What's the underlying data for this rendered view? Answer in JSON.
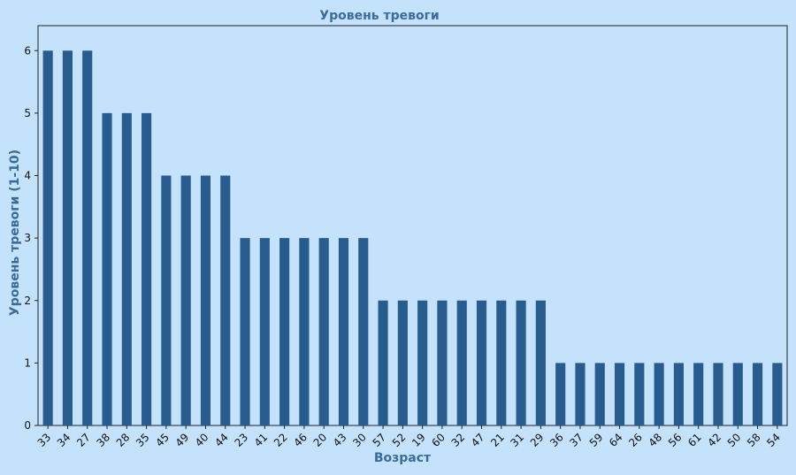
{
  "chart_data": {
    "type": "bar",
    "title": "Уровень тревоги",
    "xlabel": "Возраст",
    "ylabel": "Уровень тревоги (1-10)",
    "categories": [
      "33",
      "34",
      "27",
      "38",
      "28",
      "35",
      "45",
      "49",
      "40",
      "44",
      "23",
      "41",
      "22",
      "46",
      "20",
      "43",
      "30",
      "57",
      "52",
      "19",
      "60",
      "32",
      "47",
      "21",
      "31",
      "29",
      "36",
      "37",
      "59",
      "64",
      "26",
      "48",
      "56",
      "61",
      "42",
      "50",
      "58",
      "54"
    ],
    "values": [
      6,
      6,
      6,
      5,
      5,
      5,
      4,
      4,
      4,
      4,
      3,
      3,
      3,
      3,
      3,
      3,
      3,
      2,
      2,
      2,
      2,
      2,
      2,
      2,
      2,
      2,
      1,
      1,
      1,
      1,
      1,
      1,
      1,
      1,
      1,
      1,
      1,
      1
    ],
    "ylim": [
      0,
      6.4
    ],
    "yticks": [
      0,
      1,
      2,
      3,
      4,
      5,
      6
    ],
    "grid": false,
    "bar_color": "#285c8e",
    "background_color": "#c5e2fc",
    "title_color": "#3a6c9a"
  }
}
